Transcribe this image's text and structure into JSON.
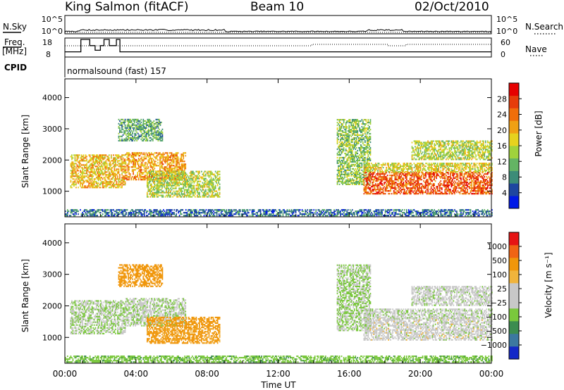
{
  "header": {
    "station": "King Salmon (fitACF)",
    "beam": "Beam 10",
    "date": "02/Oct/2010"
  },
  "noise_panel": {
    "left_label": "N.Sky",
    "right_label": "N.Search",
    "left_ticks": [
      "10^5",
      "10^0"
    ],
    "right_ticks": [
      "10^5",
      "10^0"
    ]
  },
  "freq_panel": {
    "left_label_line1": "Freq.",
    "left_label_line2": "[MHz]",
    "right_label": "Nave",
    "left_ticks": [
      "18",
      "8"
    ],
    "right_ticks": [
      "60",
      "0"
    ]
  },
  "cpid_panel": {
    "label": "CPID",
    "text": "normalsound (fast) 157"
  },
  "power_panel": {
    "ylabel": "Slant Range [km]",
    "y_ticks": [
      "4000",
      "3000",
      "2000",
      "1000"
    ],
    "colorbar_label": "Power [dB]",
    "colorbar_ticks": [
      "28",
      "24",
      "20",
      "16",
      "12",
      "8",
      "4"
    ],
    "colors": [
      "#0019e6",
      "#1e46a0",
      "#3c8c78",
      "#64b464",
      "#a0d23c",
      "#e6d21e",
      "#f0a014",
      "#f06e0a",
      "#e63c0a",
      "#e60000"
    ]
  },
  "velocity_panel": {
    "ylabel": "Slant Range [km]",
    "y_ticks": [
      "4000",
      "3000",
      "2000",
      "1000"
    ],
    "colorbar_label": "Velocity [m s⁻¹]",
    "colorbar_ticks": [
      "1000",
      "500",
      "100",
      "25",
      "−25",
      "−100",
      "−500",
      "−1000"
    ],
    "colors": [
      "#1428c8",
      "#3c78a0",
      "#3c8c50",
      "#7ac83c",
      "#c8c8c8",
      "#c8c8c8",
      "#f0b43c",
      "#f0960a",
      "#f06414",
      "#e61414"
    ]
  },
  "x_axis": {
    "ticks": [
      "00:00",
      "04:00",
      "08:00",
      "12:00",
      "16:00",
      "20:00",
      "00:00"
    ],
    "label": "Time UT"
  },
  "chart_data": {
    "type": "heatmap",
    "x_range_hours": [
      0,
      24
    ],
    "y_range_km": [
      180,
      4600
    ],
    "power_scale_db": [
      0,
      30
    ],
    "velocity_scale_ms": [
      -1000,
      1000
    ],
    "scatter_regions": [
      {
        "t0": 0.3,
        "t1": 3.4,
        "r0": 1100,
        "r1": 2150,
        "power": 18,
        "velocity": 20
      },
      {
        "t0": 3.4,
        "t1": 6.8,
        "r0": 1350,
        "r1": 2250,
        "power": 20,
        "velocity": 15
      },
      {
        "t0": 4.6,
        "t1": 8.7,
        "r0": 800,
        "r1": 1650,
        "power": 14,
        "velocity": -120
      },
      {
        "t0": 3.0,
        "t1": 5.5,
        "r0": 2600,
        "r1": 3300,
        "power": 10,
        "velocity": -150
      },
      {
        "t0": 15.3,
        "t1": 17.2,
        "r0": 1200,
        "r1": 3300,
        "power": 12,
        "velocity": 30
      },
      {
        "t0": 16.8,
        "t1": 24.0,
        "r0": 900,
        "r1": 1600,
        "power": 24,
        "velocity": 0
      },
      {
        "t0": 16.8,
        "t1": 24.0,
        "r0": 1600,
        "r1": 1900,
        "power": 16,
        "velocity": 10
      },
      {
        "t0": 19.5,
        "t1": 24.0,
        "r0": 2000,
        "r1": 2600,
        "power": 14,
        "velocity": 5
      },
      {
        "t0": 0.0,
        "t1": 24.0,
        "r0": 200,
        "r1": 420,
        "power": 6,
        "velocity": 80
      }
    ]
  }
}
